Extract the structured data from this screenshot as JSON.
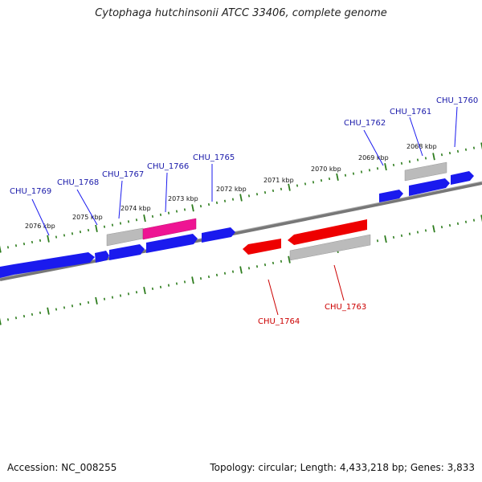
{
  "title": "Cytophaga hutchinsonii ATCC 33406, complete genome",
  "footer": {
    "accession": "Accession: NC_008255",
    "topology": "Topology: circular; Length: 4,433,218 bp; Genes: 3,833"
  },
  "colors": {
    "forward": "#1a1aee",
    "reverse": "#ee0000",
    "rna": "#ee1493",
    "pseudo": "#bbbbbb",
    "backbone": "#888888",
    "ticks": "#2e7d1e",
    "forward_label": "#1a1aaa",
    "reverse_label": "#cc0000"
  },
  "kbp_labels": [
    "2076 kbp",
    "2075 kbp",
    "2074 kbp",
    "2073 kbp",
    "2072 kbp",
    "2071 kbp",
    "2070 kbp",
    "2069 kbp",
    "2068 kbp"
  ],
  "forward_genes": [
    "CHU_1769",
    "CHU_1768",
    "CHU_1767",
    "CHU_1766",
    "CHU_1765",
    "CHU_1762",
    "CHU_1761",
    "CHU_1760"
  ],
  "reverse_genes": [
    "CHU_1764",
    "CHU_1763"
  ]
}
